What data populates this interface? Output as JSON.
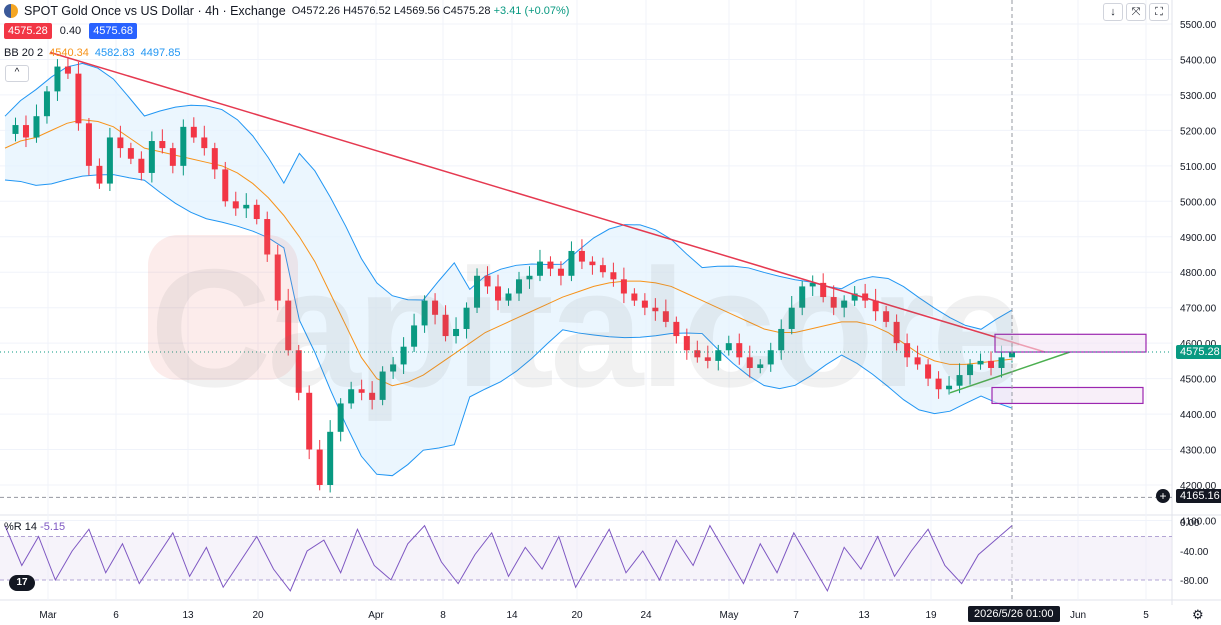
{
  "header": {
    "title": "SPOT Gold Once vs US Dollar · 4h · Exchange",
    "open": "O4572.26",
    "high": "H4576.52",
    "low": "L4569.56",
    "close": "C4575.28",
    "change": "+3.41 (+0.07%)",
    "bid": "4575.28",
    "spread": "0.40",
    "ask": "4575.68",
    "bb_label": "BB 20 2",
    "bb_basis": "4540.34",
    "bb_upper": "4582.83",
    "bb_lower": "4497.85",
    "collapse_icon": "^"
  },
  "toolbar": {
    "down_icon": "↓",
    "fullscreen_icon": "⤧",
    "expand_icon": "⛶"
  },
  "indicator": {
    "label": "%R 14",
    "value": "-5.15"
  },
  "logo": "17",
  "watermark": "Capitalcore",
  "crosshair": {
    "date_label": "2026/5/26  01:00",
    "price_label": "4165.16"
  },
  "last_price_label": "4575.28",
  "colors": {
    "up": "#089981",
    "down": "#f23645",
    "bb_line": "#2196f3",
    "bb_fill": "#e3f2fd",
    "basis": "#f7931a",
    "trend_down": "#e53950",
    "trend_up": "#4caf50",
    "zone_stroke": "#9c27b0",
    "zone_fill": "#f3e5f5",
    "wr": "#7e57c2"
  },
  "chart_data": [
    {
      "type": "candlestick",
      "title": "SPOT Gold Once vs US Dollar · 4h · Exchange",
      "ylim": [
        4100,
        5600
      ],
      "y_ticks": [
        "5500.00",
        "5400.00",
        "5300.00",
        "5200.00",
        "5100.00",
        "5000.00",
        "4900.00",
        "4800.00",
        "4700.00",
        "4600.00",
        "4500.00",
        "4400.00",
        "4300.00",
        "4200.00",
        "4100.00"
      ],
      "x_ticks": [
        "Mar",
        "6",
        "13",
        "20",
        "Apr",
        "8",
        "14",
        "20",
        "24",
        "May",
        "7",
        "13",
        "19",
        "Jun",
        "5"
      ],
      "series": [
        {
          "name": "Price",
          "values": [
            5190,
            5215,
            5180,
            5240,
            5310,
            5380,
            5360,
            5220,
            5100,
            5050,
            5180,
            5150,
            5120,
            5080,
            5170,
            5150,
            5100,
            5210,
            5180,
            5150,
            5090,
            5000,
            4980,
            4990,
            4950,
            4850,
            4720,
            4580,
            4460,
            4300,
            4200,
            4350,
            4430,
            4470,
            4460,
            4440,
            4520,
            4540,
            4590,
            4650,
            4720,
            4680,
            4620,
            4640,
            4700,
            4790,
            4760,
            4720,
            4740,
            4780,
            4790,
            4830,
            4810,
            4790,
            4860,
            4830,
            4820,
            4800,
            4780,
            4740,
            4720,
            4700,
            4690,
            4660,
            4620,
            4580,
            4560,
            4550,
            4580,
            4600,
            4560,
            4530,
            4540,
            4580,
            4640,
            4700,
            4760,
            4770,
            4730,
            4700,
            4720,
            4740,
            4720,
            4690,
            4660,
            4600,
            4560,
            4540,
            4500,
            4470,
            4480,
            4510,
            4540,
            4550,
            4530,
            4560,
            4575
          ]
        },
        {
          "name": "BB basis",
          "values": [
            5150,
            5170,
            5180,
            5200,
            5220,
            5230,
            5225,
            5210,
            5180,
            5150,
            5140,
            5130,
            5120,
            5110,
            5100,
            5080,
            5050,
            5010,
            4960,
            4900,
            4830,
            4740,
            4650,
            4560,
            4500,
            4480,
            4490,
            4510,
            4540,
            4570,
            4600,
            4630,
            4650,
            4670,
            4690,
            4710,
            4730,
            4745,
            4760,
            4770,
            4775,
            4775,
            4770,
            4760,
            4740,
            4720,
            4700,
            4680,
            4660,
            4640,
            4630,
            4630,
            4640,
            4650,
            4660,
            4660,
            4650,
            4630,
            4600,
            4570,
            4550,
            4540,
            4540,
            4545,
            4550,
            4555
          ]
        },
        {
          "name": "Williams %R",
          "values": [
            -5,
            -60,
            -20,
            -80,
            -40,
            -10,
            -70,
            -30,
            -85,
            -50,
            -15,
            -75,
            -35,
            -90,
            -55,
            -20,
            -65,
            -95,
            -40,
            -25,
            -70,
            -10,
            -60,
            -80,
            -30,
            -5,
            -55,
            -85,
            -45,
            -15,
            -75,
            -35,
            -65,
            -20,
            -90,
            -50,
            -10,
            -70,
            -40,
            -80,
            -25,
            -60,
            -5,
            -45,
            -85,
            -30,
            -70,
            -15,
            -55,
            -95,
            -35,
            -65,
            -20,
            -75,
            -40,
            -10,
            -60,
            -85,
            -45,
            -25,
            -5
          ]
        }
      ],
      "wr_ylim": [
        -100,
        0
      ],
      "wr_ticks": [
        "0.00",
        "-40.00",
        "-80.00"
      ]
    }
  ]
}
